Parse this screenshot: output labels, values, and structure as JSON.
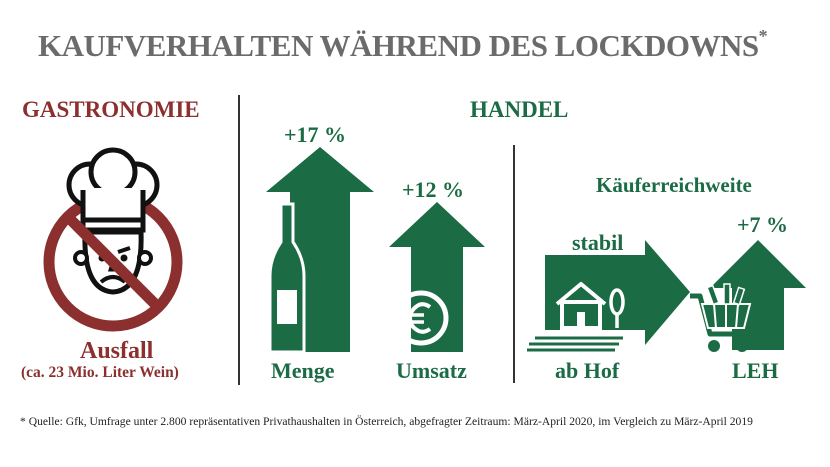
{
  "title": "KAUFVERHALTEN WÄHREND DES LOCKDOWNS",
  "title_marker": "*",
  "colors": {
    "green": "#1b6b45",
    "red": "#8b2f2f",
    "grey": "#6b6b6b"
  },
  "gastronomie": {
    "heading": "GASTRONOMIE",
    "icon": "chef-prohibited-icon",
    "label": "Ausfall",
    "sublabel": "(ca. 23 Mio. Liter Wein)"
  },
  "handel": {
    "heading": "HANDEL",
    "menge": {
      "value": "+17 %",
      "label": "Menge",
      "icon": "wine-bottle-icon"
    },
    "umsatz": {
      "value": "+12 %",
      "label": "Umsatz",
      "icon": "euro-icon"
    },
    "kaeuferreichweite": {
      "heading": "Käuferreichweite",
      "ab_hof": {
        "value": "stabil",
        "label": "ab Hof",
        "icon": "farmhouse-icon"
      },
      "leh": {
        "value": "+7 %",
        "label": "LEH",
        "icon": "shopping-cart-icon"
      }
    }
  },
  "footnote": "* Quelle: Gfk, Umfrage unter 2.800 repräsentativen Privathaushalten in Österreich, abgefragter Zeitraum: März-April 2020, im Vergleich zu März-April 2019"
}
